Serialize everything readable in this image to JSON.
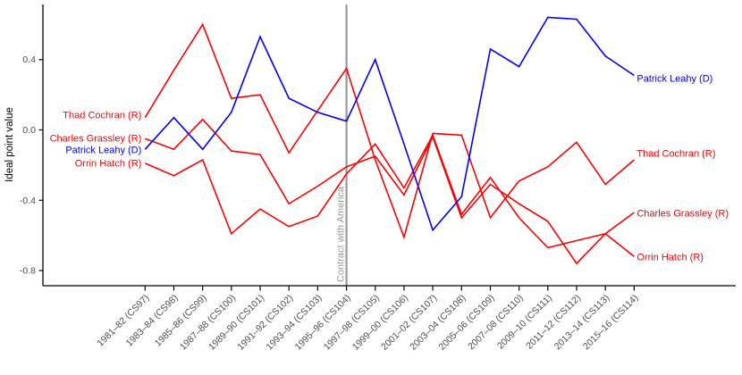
{
  "chart_data": {
    "type": "line",
    "title": "",
    "xlabel": "",
    "ylabel": "Ideal point value",
    "grid": false,
    "legend_position": "direct-labels-at-line-ends",
    "ylim": [
      -0.85,
      0.72
    ],
    "y_ticks": [
      {
        "label": "0.4",
        "value": 0.4
      },
      {
        "label": "0.0",
        "value": 0.0
      },
      {
        "label": "-0.4",
        "value": -0.4
      },
      {
        "label": "-0.8",
        "value": -0.8
      }
    ],
    "categories": [
      "1981–82 (CS97)",
      "1983–84 (CS98)",
      "1985–86 (CS99)",
      "1987–88 (CS100)",
      "1989–90 (CS101)",
      "1991–92 (CS102)",
      "1993–94 (CS103)",
      "1995–96 (CS104)",
      "1997–98 (CS105)",
      "1999–00 (CS106)",
      "2001–02 (CS107)",
      "2003–04 (CS108)",
      "2005–06 (CS109)",
      "2007–08 (CS110)",
      "2009–10 (CS111)",
      "2011–12 (CS112)",
      "2013–14 (CS113)",
      "2015–16 (CS114)"
    ],
    "annotation": {
      "label": "Contract with America",
      "x_category": "1995–96 (CS104)",
      "x_index": 7,
      "color": "#999999"
    },
    "series": [
      {
        "name": "Thad Cochran (R)",
        "party": "R",
        "color": "#FF0000",
        "values": [
          0.07,
          0.34,
          0.6,
          0.18,
          0.2,
          -0.13,
          0.11,
          0.35,
          -0.17,
          -0.61,
          -0.02,
          -0.03,
          -0.5,
          -0.29,
          -0.21,
          -0.07,
          -0.31,
          -0.17
        ]
      },
      {
        "name": "Charles Grassley (R)",
        "party": "R",
        "color": "#FF0000",
        "values": [
          -0.05,
          -0.11,
          0.06,
          -0.12,
          -0.14,
          -0.42,
          -0.32,
          -0.21,
          -0.15,
          -0.37,
          -0.04,
          -0.5,
          -0.31,
          -0.42,
          -0.52,
          -0.76,
          -0.59,
          -0.47
        ]
      },
      {
        "name": "Orrin Hatch (R)",
        "party": "R",
        "color": "#FF0000",
        "values": [
          -0.19,
          -0.26,
          -0.17,
          -0.59,
          -0.45,
          -0.55,
          -0.49,
          -0.25,
          -0.08,
          -0.33,
          -0.03,
          -0.48,
          -0.27,
          -0.5,
          -0.67,
          -0.63,
          -0.59,
          -0.72
        ]
      },
      {
        "name": "Patrick Leahy (D)",
        "party": "D",
        "color": "#0000FF",
        "values": [
          -0.11,
          0.07,
          -0.11,
          0.1,
          0.53,
          0.18,
          0.1,
          0.05,
          0.4,
          -0.08,
          -0.57,
          -0.38,
          0.46,
          0.36,
          0.64,
          0.63,
          0.42,
          0.31
        ]
      }
    ],
    "left_label_order": [
      "Thad Cochran (R)",
      "Charles Grassley (R)",
      "Patrick Leahy (D)",
      "Orrin Hatch (R)"
    ],
    "right_label_order": [
      "Patrick Leahy (D)",
      "Thad Cochran (R)",
      "Charles Grassley (R)",
      "Orrin Hatch (R)"
    ],
    "axis_color": "#000000",
    "tick_label_color": "#4D4D4D"
  }
}
